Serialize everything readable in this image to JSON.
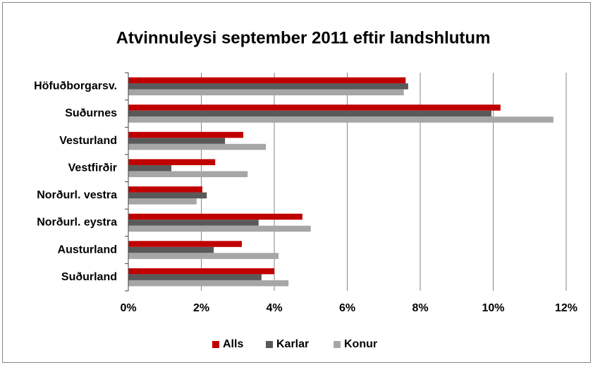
{
  "chart_data": {
    "type": "hbar",
    "title": "Atvinnuleysi september 2011 eftir landshlutum",
    "categories": [
      "Höfuðborgarsv.",
      "Suðurnes",
      "Vesturland",
      "Vestfirðir",
      "Norðurl. vestra",
      "Norðurl. eystra",
      "Austurland",
      "Suðurland"
    ],
    "series": [
      {
        "name": "Alls",
        "color": "#c00000",
        "values": [
          7.6,
          10.2,
          3.15,
          2.38,
          2.03,
          4.77,
          3.11,
          4.0
        ]
      },
      {
        "name": "Karlar",
        "color": "#595959",
        "values": [
          7.67,
          9.95,
          2.65,
          1.18,
          2.15,
          3.57,
          2.34,
          3.65
        ]
      },
      {
        "name": "Konur",
        "color": "#a6a6a6",
        "values": [
          7.55,
          11.65,
          3.77,
          3.27,
          1.87,
          5.0,
          4.12,
          4.39
        ]
      }
    ],
    "xlim": [
      0,
      12
    ],
    "xticks": [
      {
        "value": 0,
        "label": "0%"
      },
      {
        "value": 2,
        "label": "2%"
      },
      {
        "value": 4,
        "label": "4%"
      },
      {
        "value": 6,
        "label": "6%"
      },
      {
        "value": 8,
        "label": "8%"
      },
      {
        "value": 10,
        "label": "10%"
      },
      {
        "value": 12,
        "label": "12%"
      }
    ],
    "grid": true,
    "legend": "bottom"
  }
}
